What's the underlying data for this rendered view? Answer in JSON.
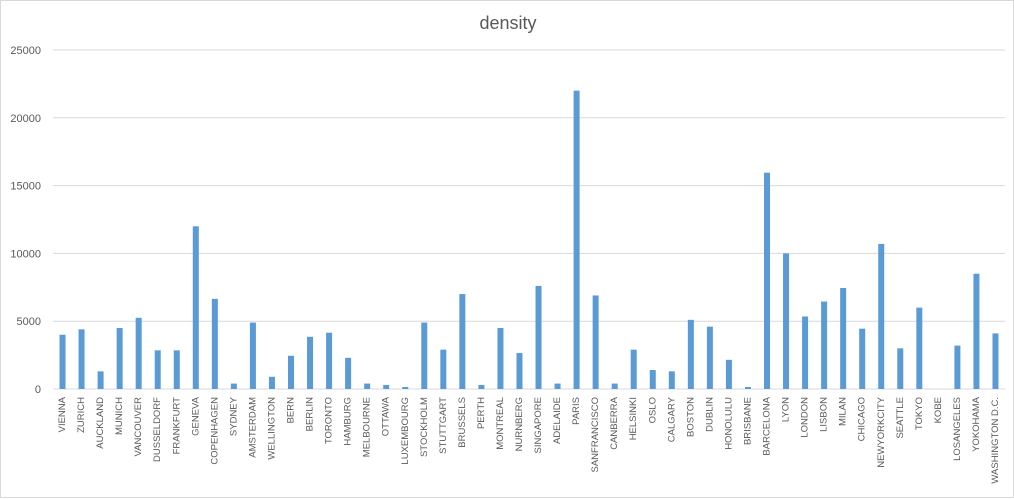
{
  "chart_data": {
    "type": "bar",
    "title": "density",
    "xlabel": "",
    "ylabel": "",
    "ylim": [
      0,
      25000
    ],
    "yticks": [
      0,
      5000,
      10000,
      15000,
      20000,
      25000
    ],
    "grid": true,
    "legend": "none",
    "bar_color": "#5b9bd5",
    "categories": [
      "VIENNA",
      "ZURICH",
      "AUCKLAND",
      "MUNICH",
      "VANCOUVER",
      "DUSSELDORF",
      "FRANKFURT",
      "GENEVA",
      "COPENHAGEN",
      "SYDNEY",
      "AMSTERDAM",
      "WELLINGTON",
      "BERN",
      "BERLIN",
      "TORONTO",
      "HAMBURG",
      "MELBOURNE",
      "OTTAWA",
      "LUXEMBOURG",
      "STOCKHOLM",
      "STUTTGART",
      "BRUSSELS",
      "PERTH",
      "MONTREAL",
      "NURNBERG",
      "SINGAPORE",
      "ADELAIDE",
      "PARIS",
      "SANFRANCISCO",
      "CANBERRA",
      "HELSINKI",
      "OSLO",
      "CALGARY",
      "BOSTON",
      "DUBLIN",
      "HONOLULU",
      "BRISBANE",
      "BARCELONA",
      "LYON",
      "LONDON",
      "LISBON",
      "MILAN",
      "CHICAGO",
      "NEWYORKCITY",
      "SEATTLE",
      "TOKYO",
      "KOBE",
      "LOSANGELES",
      "YOKOHAMA",
      "WASHINGTON D.C."
    ],
    "values": [
      4000,
      4400,
      1300,
      4500,
      5250,
      2850,
      2850,
      12000,
      6650,
      400,
      4900,
      900,
      2450,
      3850,
      4150,
      2300,
      400,
      300,
      150,
      4900,
      2900,
      7000,
      300,
      4500,
      2650,
      7600,
      400,
      22000,
      6900,
      400,
      2900,
      1400,
      1300,
      5100,
      4600,
      2150,
      150,
      15950,
      10000,
      5350,
      6450,
      7450,
      4450,
      10700,
      3000,
      6000,
      0,
      3200,
      8500,
      4100
    ]
  }
}
